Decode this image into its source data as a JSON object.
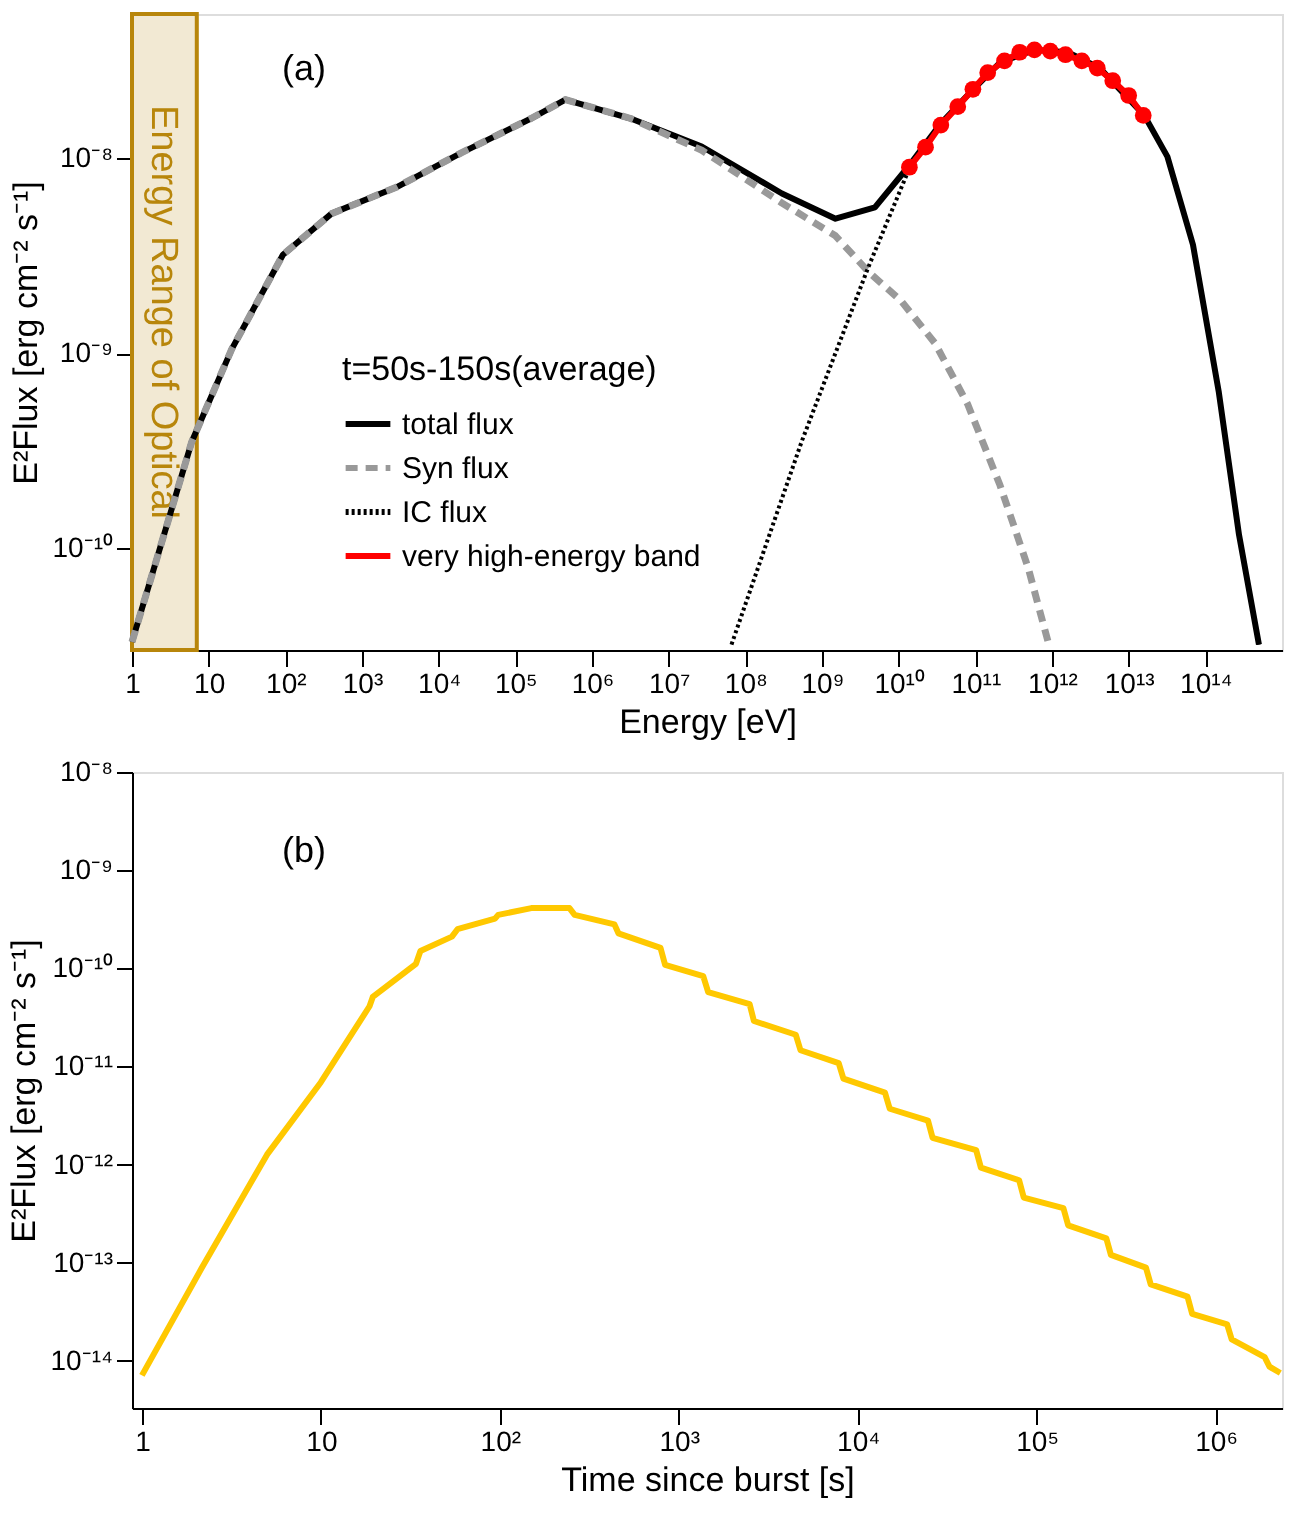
{
  "chart_data": [
    {
      "type": "line",
      "xlabel": "Energy [eV]",
      "ylabel": "E²Flux [erg cm⁻² s⁻¹]",
      "legend_title": "t=50s-150s(average)",
      "log": "xy",
      "grid": false,
      "legend": "left",
      "xlim": [
        1,
        1000000000000000.0
      ],
      "ylim": [
        3e-11,
        5.5e-08
      ],
      "xticks": [
        1,
        10,
        {
          "value": 100.0,
          "label": "10²"
        },
        {
          "value": 1000.0,
          "label": "10³"
        },
        {
          "value": 10000.0,
          "label": "10⁴"
        },
        {
          "value": 100000.0,
          "label": "10⁵"
        },
        {
          "value": 1000000.0,
          "label": "10⁶"
        },
        {
          "value": 10000000.0,
          "label": "10⁷"
        },
        {
          "value": 100000000.0,
          "label": "10⁸"
        },
        {
          "value": 1000000000.0,
          "label": "10⁹"
        },
        {
          "value": 10000000000.0,
          "label": "10¹⁰"
        },
        {
          "value": 100000000000.0,
          "label": "10¹¹"
        },
        {
          "value": 1000000000000.0,
          "label": "10¹²"
        },
        {
          "value": 10000000000000.0,
          "label": "10¹³"
        },
        {
          "value": 100000000000000.0,
          "label": "10¹⁴"
        }
      ],
      "yticks": [
        {
          "value": 1e-10,
          "label": "10⁻¹⁰"
        },
        {
          "value": 1e-09,
          "label": "10⁻⁹"
        },
        {
          "value": 1e-08,
          "label": "10⁻⁸"
        }
      ],
      "annotations": [
        "(a)"
      ],
      "bands": [
        {
          "axis": "x",
          "from": 1,
          "to": 7,
          "label": "Energy Range of Optical",
          "color": "#b8860b"
        }
      ],
      "series": [
        {
          "name": "total flux",
          "color": "#000000",
          "line_style": "solid",
          "marker": "none",
          "x": [
            1,
            6.0,
            20,
            93,
            400,
            2800,
            20000.0,
            160000.0,
            450000.0,
            3200000.0,
            27000000.0,
            300000000.0,
            1500000000.0,
            4900000000.0,
            13500000000.0,
            35000000000.0,
            98000000000.0,
            210000000000.0,
            590000000000.0,
            1600000000000.0,
            4200000000000.0,
            16000000000000.0,
            32000000000000.0,
            69000000000000.0,
            150000000000000.0,
            275000000000000.0,
            500000000000000.0
          ],
          "values": [
            3.3e-11,
            3.5e-10,
            1.05e-09,
            3.2e-09,
            5.2e-09,
            7.1e-09,
            1.07e-08,
            1.6e-08,
            2e-08,
            1.6e-08,
            1.15e-08,
            6.6e-09,
            4.9e-09,
            5.6e-09,
            9.1e-09,
            1.5e-08,
            2.3e-08,
            3.1e-08,
            3.6e-08,
            3.5e-08,
            2.9e-08,
            1.66e-08,
            1.02e-08,
            3.6e-09,
            6.3e-10,
            1.17e-10,
            3.2e-11
          ]
        },
        {
          "name": "Syn flux",
          "color": "#999999",
          "line_style": "dashed",
          "marker": "none",
          "x": [
            1,
            6.0,
            20,
            93,
            400,
            2800,
            20000.0,
            160000.0,
            450000.0,
            3200000.0,
            27000000.0,
            300000000.0,
            1500000000.0,
            4100000000.0,
            10700000000.0,
            30000000000.0,
            79000000000.0,
            210000000000.0,
            490000000000.0,
            890000000000.0
          ],
          "values": [
            3.3e-11,
            3.5e-10,
            1.05e-09,
            3.2e-09,
            5.2e-09,
            7.1e-09,
            1.07e-08,
            1.6e-08,
            2e-08,
            1.6e-08,
            1.1e-08,
            5.9e-09,
            4e-09,
            2.6e-09,
            1.86e-09,
            1.12e-09,
            5.5e-10,
            2.1e-10,
            7.9e-11,
            3.3e-11
          ]
        },
        {
          "name": "IC flux",
          "color": "#000000",
          "line_style": "dotted",
          "marker": "none",
          "x": [
            66000000.0,
            540000000.0,
            4000000000.0,
            13500000000.0,
            35000000000.0,
            98000000000.0,
            210000000000.0,
            590000000000.0,
            1600000000000.0,
            4200000000000.0,
            16000000000000.0,
            32000000000000.0,
            69000000000000.0,
            150000000000000.0,
            275000000000000.0,
            500000000000000.0
          ],
          "values": [
            3.2e-11,
            3.5e-10,
            2.75e-09,
            8.7e-09,
            1.5e-08,
            2.3e-08,
            3.1e-08,
            3.6e-08,
            3.5e-08,
            2.9e-08,
            1.66e-08,
            1.02e-08,
            3.6e-09,
            6.3e-10,
            1.17e-10,
            3.2e-11
          ]
        },
        {
          "name": "very high-energy band",
          "color": "#ff0000",
          "line_style": "solid",
          "marker": "circle",
          "x": [
            13800000000.0,
            22400000000.0,
            35500000000.0,
            59000000000.0,
            93000000000.0,
            145000000000.0,
            240000000000.0,
            380000000000.0,
            590000000000.0,
            950000000000.0,
            1500000000000.0,
            2450000000000.0,
            3900000000000.0,
            6200000000000.0,
            10000000000000.0,
            15500000000000.0
          ],
          "values": [
            9e-09,
            1.14e-08,
            1.48e-08,
            1.84e-08,
            2.26e-08,
            2.75e-08,
            3.16e-08,
            3.5e-08,
            3.6e-08,
            3.55e-08,
            3.4e-08,
            3.16e-08,
            2.9e-08,
            2.5e-08,
            2.1e-08,
            1.66e-08
          ]
        }
      ]
    },
    {
      "type": "line",
      "xlabel": "Time since burst [s]",
      "ylabel": "E²Flux [erg cm⁻² s⁻¹]",
      "log": "xy",
      "grid": false,
      "xlim": [
        0.88,
        2350000.0
      ],
      "ylim": [
        3.3e-15,
        1e-08
      ],
      "xticks": [
        1,
        10,
        {
          "value": 100.0,
          "label": "10²"
        },
        {
          "value": 1000.0,
          "label": "10³"
        },
        {
          "value": 10000.0,
          "label": "10⁴"
        },
        {
          "value": 100000.0,
          "label": "10⁵"
        },
        {
          "value": 1000000.0,
          "label": "10⁶"
        }
      ],
      "yticks": [
        {
          "value": 1e-14,
          "label": "10⁻¹⁴"
        },
        {
          "value": 1e-13,
          "label": "10⁻¹³"
        },
        {
          "value": 1e-12,
          "label": "10⁻¹²"
        },
        {
          "value": 1e-11,
          "label": "10⁻¹¹"
        },
        {
          "value": 1e-10,
          "label": "10⁻¹⁰"
        },
        {
          "value": 1e-09,
          "label": "10⁻⁹"
        },
        {
          "value": 1e-08,
          "label": "10⁻⁸"
        }
      ],
      "annotations": [
        "(b)"
      ],
      "series": [
        {
          "color": "#ffc800",
          "line_style": "solid",
          "marker": "none",
          "x": [
            1,
            2.15,
            5.0,
            10,
            18.7,
            19.5,
            34,
            36,
            54,
            58,
            94,
            98,
            150,
            245,
            262,
            437,
            460,
            791,
            839,
            1370,
            1460,
            2490,
            2630,
            4510,
            4790,
            7830,
            8320,
            14200.0,
            15100.0,
            24700.0,
            26200.0,
            45900.0,
            48800.0,
            79800.0,
            84700.0,
            141000.0,
            150000.0,
            245000.0,
            260000.0,
            408000.0,
            434000.0,
            697000.0,
            740000.0,
            1160000.0,
            1230000.0,
            1880000.0,
            2000000.0,
            2300000.0
          ],
          "values": [
            7.1e-15,
            8.7e-14,
            1.26e-12,
            6.9e-12,
            4.1e-11,
            5.1e-11,
            1.11e-10,
            1.5e-10,
            2.1e-10,
            2.5e-10,
            3.2e-10,
            3.5e-10,
            4.1e-10,
            4.1e-10,
            3.5e-10,
            2.8e-10,
            2.27e-10,
            1.61e-10,
            1.08e-10,
            8.3e-11,
            5.7e-11,
            4.3e-11,
            2.9e-11,
            2.1e-11,
            1.46e-11,
            1.08e-11,
            7.5e-12,
            5.4e-12,
            3.7e-12,
            2.8e-12,
            1.87e-12,
            1.4e-12,
            9.3e-13,
            6.9e-13,
            4.6e-13,
            3.6e-13,
            2.4e-13,
            1.77e-13,
            1.2e-13,
            8.9e-14,
            6e-14,
            4.5e-14,
            3e-14,
            2.35e-14,
            1.65e-14,
            1.09e-14,
            8.7e-15,
            7.5e-15
          ]
        }
      ]
    }
  ]
}
